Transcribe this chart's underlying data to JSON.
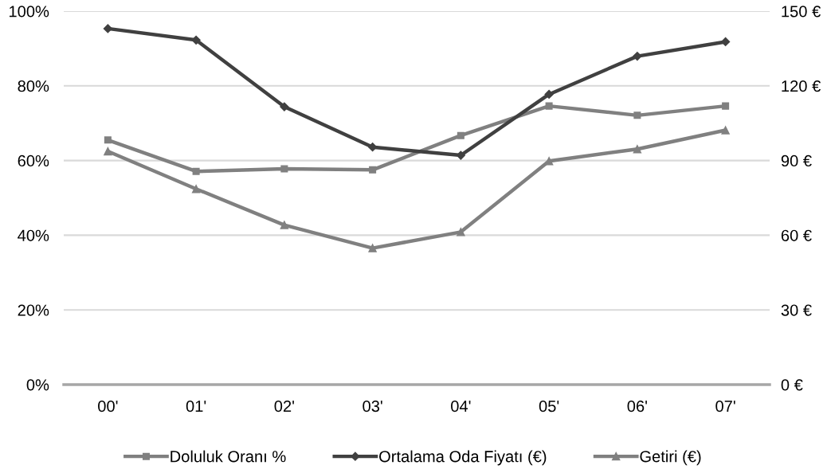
{
  "chart_data": {
    "type": "line",
    "categories": [
      "00'",
      "01'",
      "02'",
      "03'",
      "04'",
      "05'",
      "06'",
      "07'"
    ],
    "series": [
      {
        "name": "Doluluk Oranı %",
        "color": "#808080",
        "marker": "square",
        "values": [
          65.5,
          57.1,
          57.8,
          57.5,
          66.7,
          74.6,
          72.1,
          74.6
        ]
      },
      {
        "name": "Ortalama Oda Fiyatı (€)",
        "color": "#404040",
        "marker": "diamond",
        "axis": "y2",
        "values": [
          143.0,
          138.4,
          111.6,
          95.4,
          92.1,
          116.6,
          131.9,
          137.7
        ]
      },
      {
        "name": "Getiri (€)",
        "color": "#808080",
        "marker": "triangle",
        "axis": "y2",
        "values": [
          93.7,
          78.6,
          64.1,
          54.8,
          61.3,
          89.8,
          94.6,
          102.2
        ]
      }
    ],
    "ylim": [
      0,
      100
    ],
    "yticks": [
      {
        "value": 0,
        "label": "0%"
      },
      {
        "value": 20,
        "label": "20%"
      },
      {
        "value": 40,
        "label": "40%"
      },
      {
        "value": 60,
        "label": "60%"
      },
      {
        "value": 80,
        "label": "80%"
      },
      {
        "value": 100,
        "label": "100%"
      }
    ],
    "y2lim": [
      0,
      150
    ],
    "y2ticks": [
      {
        "value": 0,
        "label": "0 €"
      },
      {
        "value": 30,
        "label": "30 €"
      },
      {
        "value": 60,
        "label": "60 €"
      },
      {
        "value": 90,
        "label": "90 €"
      },
      {
        "value": 120,
        "label": "120 €"
      },
      {
        "value": 150,
        "label": "150 €"
      }
    ],
    "grid": "y",
    "legend": "bottom",
    "line_style": "solid"
  }
}
